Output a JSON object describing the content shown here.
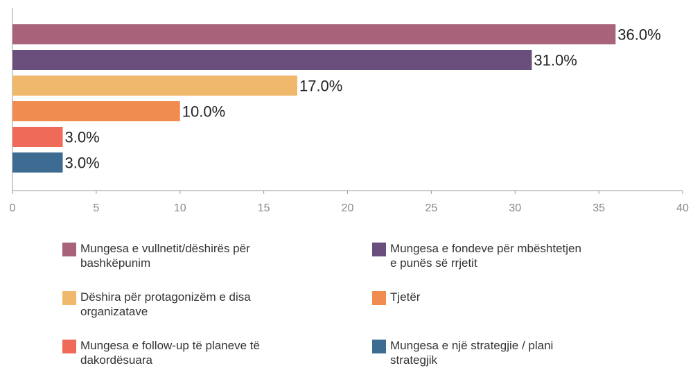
{
  "chart_data": {
    "type": "bar",
    "orientation": "horizontal",
    "series": [
      {
        "name": "Mungesa e vullnetit/dëshirës për bashkëpunim",
        "color": "#a8637a",
        "values": [
          36
        ],
        "value_labels": [
          "36.0%"
        ]
      },
      {
        "name": "Mungesa e fondeve për mbështetjen e punës së rrjetit",
        "color": "#6a4e7c",
        "values": [
          31
        ],
        "value_labels": [
          "31.0%"
        ]
      },
      {
        "name": "Dëshira për protagonizëm e disa organizatave",
        "color": "#f0b86a",
        "values": [
          17
        ],
        "value_labels": [
          "17.0%"
        ]
      },
      {
        "name": "Tjetër",
        "color": "#f08c50",
        "values": [
          10
        ],
        "value_labels": [
          "10.0%"
        ]
      },
      {
        "name": "Mungesa e follow-up të planeve të dakordësuara",
        "color": "#f06a5a",
        "values": [
          3
        ],
        "value_labels": [
          "3.0%"
        ]
      },
      {
        "name": "Mungesa e një strategjie / plani strategjik",
        "color": "#3e6b91",
        "values": [
          3
        ],
        "value_labels": [
          "3.0%"
        ]
      }
    ],
    "xlim": [
      0,
      40
    ],
    "xticks": [
      0,
      5,
      10,
      15,
      20,
      25,
      30,
      35,
      40
    ],
    "legend": "bottom"
  }
}
